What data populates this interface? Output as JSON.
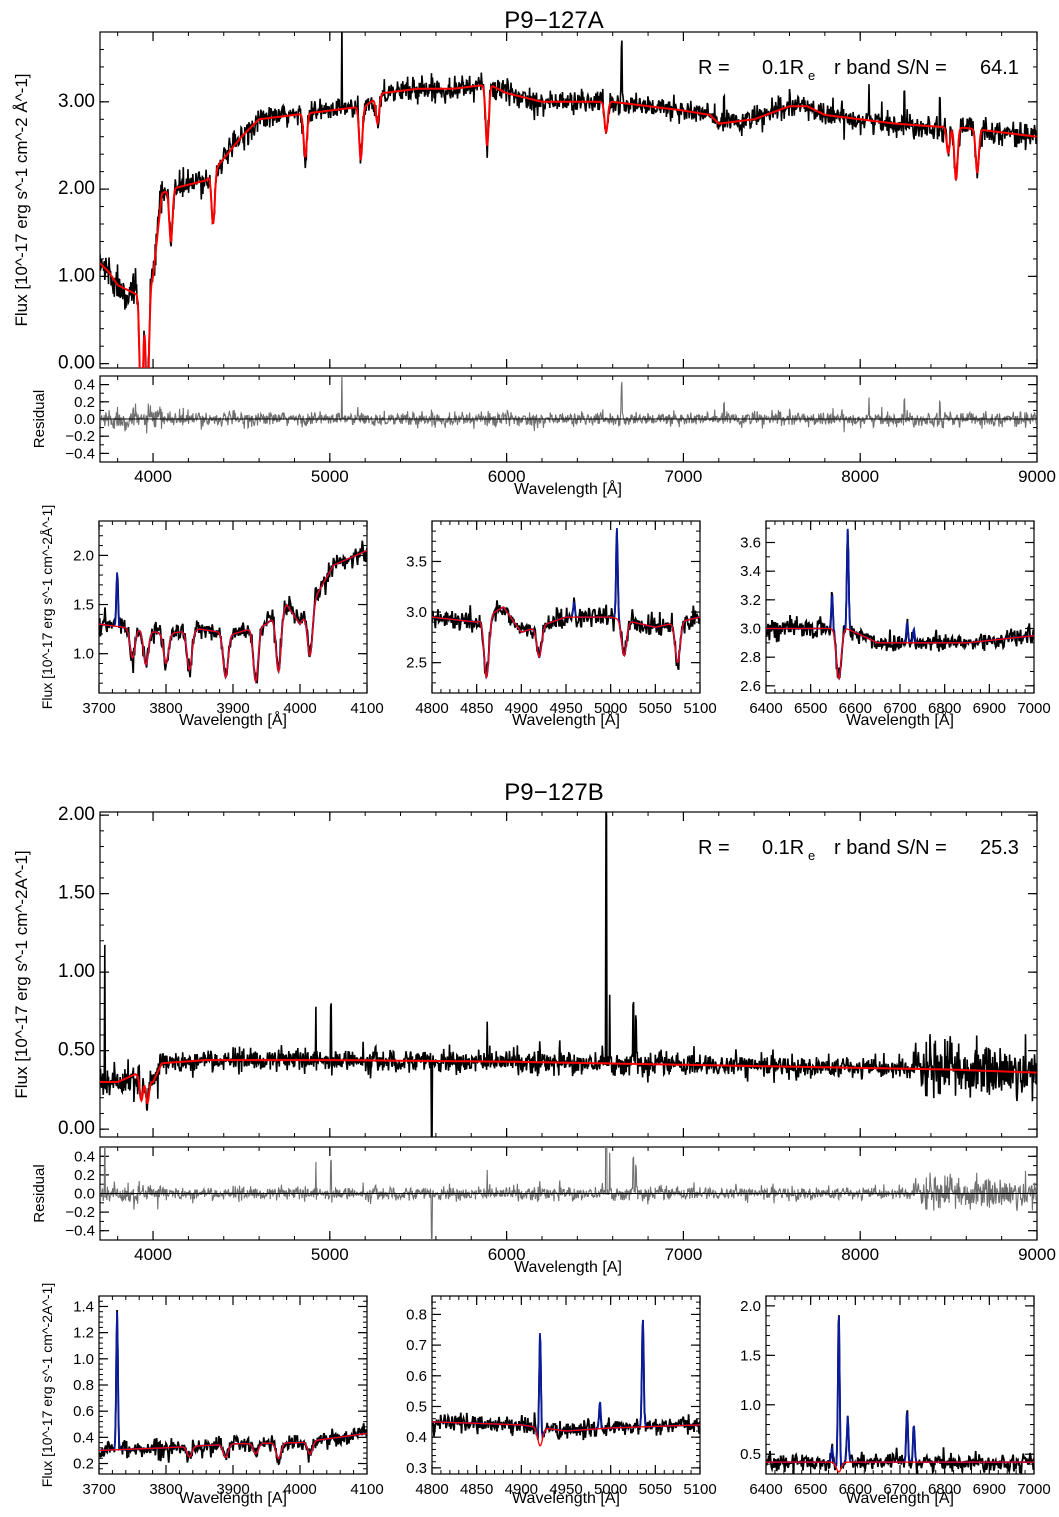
{
  "colors": {
    "data": "#000000",
    "model": "#ff0000",
    "emission": "#0b1b9e",
    "residual": "#707070"
  },
  "chart_data": [
    {
      "id": "A",
      "title": "P9−127A",
      "annotation": {
        "r_label": "R =",
        "r_value": "0.1R",
        "r_sub": "e",
        "sn_label": "r band S/N =",
        "sn_value": "64.1"
      },
      "main": {
        "type": "line",
        "xlim": [
          3700,
          9000
        ],
        "ylim": [
          -0.05,
          3.8
        ],
        "ylabel": "Flux [10^-17 erg s^-1 cm^-2 Å^-1]",
        "yticks": [
          "0.00",
          "1.00",
          "2.00",
          "3.00"
        ],
        "ytick_values": [
          0,
          1,
          2,
          3
        ],
        "continuum": [
          [
            3700,
            1.15
          ],
          [
            3750,
            1.05
          ],
          [
            3800,
            0.9
          ],
          [
            3850,
            0.85
          ],
          [
            3900,
            0.8
          ],
          [
            3960,
            0.8
          ],
          [
            4000,
            1.0
          ],
          [
            4050,
            1.95
          ],
          [
            4100,
            2.0
          ],
          [
            4200,
            2.05
          ],
          [
            4300,
            2.1
          ],
          [
            4400,
            2.35
          ],
          [
            4500,
            2.6
          ],
          [
            4600,
            2.8
          ],
          [
            4800,
            2.85
          ],
          [
            5000,
            2.9
          ],
          [
            5200,
            2.95
          ],
          [
            5300,
            3.1
          ],
          [
            5500,
            3.15
          ],
          [
            5700,
            3.15
          ],
          [
            5900,
            3.2
          ],
          [
            6000,
            3.1
          ],
          [
            6200,
            3.0
          ],
          [
            6400,
            3.0
          ],
          [
            6600,
            3.0
          ],
          [
            6800,
            2.95
          ],
          [
            7000,
            2.9
          ],
          [
            7150,
            2.85
          ],
          [
            7200,
            2.75
          ],
          [
            7400,
            2.8
          ],
          [
            7600,
            2.95
          ],
          [
            7700,
            2.95
          ],
          [
            7800,
            2.85
          ],
          [
            8000,
            2.8
          ],
          [
            8200,
            2.75
          ],
          [
            8400,
            2.72
          ],
          [
            8600,
            2.7
          ],
          [
            8800,
            2.65
          ],
          [
            9000,
            2.6
          ]
        ],
        "absorptions": [
          [
            3934,
            1.5
          ],
          [
            3968,
            1.3
          ],
          [
            4101,
            0.6
          ],
          [
            4340,
            0.6
          ],
          [
            4861,
            0.5
          ],
          [
            5175,
            0.6
          ],
          [
            5270,
            0.3
          ],
          [
            5890,
            0.7
          ],
          [
            6563,
            0.35
          ],
          [
            8498,
            0.3
          ],
          [
            8542,
            0.6
          ],
          [
            8662,
            0.5
          ]
        ],
        "spikes": [
          [
            5068,
            1.0
          ],
          [
            6650,
            0.7
          ],
          [
            7230,
            0.3
          ],
          [
            8050,
            0.4
          ],
          [
            8250,
            0.35
          ],
          [
            8450,
            0.3
          ]
        ]
      },
      "residual": {
        "ylim": [
          -0.5,
          0.5
        ],
        "ylabel": "Residual",
        "yticks": [
          "0.4",
          "0.2",
          "0.0",
          "−0.2",
          "−0.4"
        ],
        "ytick_values": [
          0.4,
          0.2,
          0,
          -0.2,
          -0.4
        ],
        "noise": 0.03
      },
      "xaxis": {
        "xticks": [
          "4000",
          "5000",
          "6000",
          "7000",
          "8000",
          "9000"
        ],
        "xtick_values": [
          4000,
          5000,
          6000,
          7000,
          8000,
          9000
        ],
        "xlabel": "Wavelength [Å]"
      },
      "zooms": [
        {
          "xlim": [
            3700,
            4100
          ],
          "ylim": [
            0.6,
            2.35
          ],
          "xticks": [
            "3700",
            "3800",
            "3900",
            "4000",
            "4100"
          ],
          "xtick_values": [
            3700,
            3800,
            3900,
            4000,
            4100
          ],
          "yticks": [
            "1.0",
            "1.5",
            "2.0"
          ],
          "ytick_values": [
            1.0,
            1.5,
            2.0
          ],
          "xlabel": "Wavelength [Å]",
          "ylabel": "Flux [10^-17 erg s^-1 cm^-2Å^-1]",
          "continuum": [
            [
              3700,
              1.3
            ],
            [
              3760,
              1.25
            ],
            [
              3800,
              1.2
            ],
            [
              3850,
              1.25
            ],
            [
              3900,
              1.2
            ],
            [
              3950,
              1.3
            ],
            [
              3980,
              1.5
            ],
            [
              4000,
              1.3
            ],
            [
              4050,
              1.9
            ],
            [
              4100,
              2.05
            ]
          ],
          "absorptions": [
            [
              3750,
              0.3
            ],
            [
              3770,
              0.35
            ],
            [
              3800,
              0.3
            ],
            [
              3835,
              0.4
            ],
            [
              3889,
              0.45
            ],
            [
              3934,
              0.55
            ],
            [
              3968,
              0.6
            ],
            [
              4015,
              0.5
            ]
          ],
          "emissions": [
            [
              3727,
              0.55
            ]
          ]
        },
        {
          "xlim": [
            4800,
            5100
          ],
          "ylim": [
            2.2,
            3.9
          ],
          "xticks": [
            "4800",
            "4850",
            "4900",
            "4950",
            "5000",
            "5050",
            "5100"
          ],
          "xtick_values": [
            4800,
            4850,
            4900,
            4950,
            5000,
            5050,
            5100
          ],
          "yticks": [
            "2.5",
            "3.0",
            "3.5"
          ],
          "ytick_values": [
            2.5,
            3.0,
            3.5
          ],
          "xlabel": "Wavelength [Å]",
          "ylabel": "",
          "continuum": [
            [
              4800,
              2.95
            ],
            [
              4850,
              2.9
            ],
            [
              4880,
              3.05
            ],
            [
              4900,
              2.8
            ],
            [
              4950,
              2.95
            ],
            [
              5000,
              2.95
            ],
            [
              5050,
              2.85
            ],
            [
              5100,
              2.95
            ]
          ],
          "absorptions": [
            [
              4861,
              0.6
            ],
            [
              4920,
              0.3
            ],
            [
              5015,
              0.35
            ],
            [
              5075,
              0.4
            ]
          ],
          "emissions": [
            [
              5007,
              0.9
            ],
            [
              4959,
              0.15
            ]
          ]
        },
        {
          "xlim": [
            6400,
            7000
          ],
          "ylim": [
            2.55,
            3.75
          ],
          "xticks": [
            "6400",
            "6500",
            "6600",
            "6700",
            "6800",
            "6900",
            "7000"
          ],
          "xtick_values": [
            6400,
            6500,
            6600,
            6700,
            6800,
            6900,
            7000
          ],
          "yticks": [
            "2.6",
            "2.8",
            "3.0",
            "3.2",
            "3.4",
            "3.6"
          ],
          "ytick_values": [
            2.6,
            2.8,
            3.0,
            3.2,
            3.4,
            3.6
          ],
          "xlabel": "Wavelength [Å]",
          "ylabel": "",
          "continuum": [
            [
              6400,
              3.0
            ],
            [
              6500,
              3.0
            ],
            [
              6580,
              3.0
            ],
            [
              6650,
              2.9
            ],
            [
              6750,
              2.9
            ],
            [
              6850,
              2.9
            ],
            [
              7000,
              2.95
            ]
          ],
          "absorptions": [
            [
              6563,
              0.35
            ]
          ],
          "emissions": [
            [
              6583,
              0.7
            ],
            [
              6548,
              0.25
            ],
            [
              6716,
              0.15
            ],
            [
              6731,
              0.1
            ]
          ]
        }
      ]
    },
    {
      "id": "B",
      "title": "P9−127B",
      "annotation": {
        "r_label": "R =",
        "r_value": "0.1R",
        "r_sub": "e",
        "sn_label": "r band S/N =",
        "sn_value": "25.3"
      },
      "main": {
        "type": "line",
        "xlim": [
          3700,
          9000
        ],
        "ylim": [
          -0.05,
          2.02
        ],
        "ylabel": "Flux [10^-17 erg s^-1 cm^-2A^-1]",
        "yticks": [
          "0.00",
          "0.50",
          "1.00",
          "1.50",
          "2.00"
        ],
        "ytick_values": [
          0,
          0.5,
          1.0,
          1.5,
          2.0
        ],
        "continuum": [
          [
            3700,
            0.3
          ],
          [
            3800,
            0.3
          ],
          [
            3900,
            0.35
          ],
          [
            4000,
            0.3
          ],
          [
            4050,
            0.42
          ],
          [
            4300,
            0.44
          ],
          [
            5000,
            0.44
          ],
          [
            6000,
            0.43
          ],
          [
            7000,
            0.41
          ],
          [
            7500,
            0.4
          ],
          [
            8000,
            0.39
          ],
          [
            8500,
            0.38
          ],
          [
            9000,
            0.36
          ]
        ],
        "absorptions": [
          [
            3934,
            0.15
          ],
          [
            3968,
            0.15
          ]
        ],
        "spikes": [
          [
            3727,
            0.9
          ],
          [
            4921,
            0.35
          ],
          [
            5007,
            0.35
          ],
          [
            5577,
            0.9
          ],
          [
            5890,
            0.25
          ],
          [
            6300,
            0.1
          ],
          [
            6563,
            1.6
          ],
          [
            6583,
            0.45
          ],
          [
            6716,
            0.35
          ],
          [
            6731,
            0.3
          ],
          [
            7060,
            0.1
          ]
        ]
      },
      "residual": {
        "ylim": [
          -0.5,
          0.5
        ],
        "ylabel": "Residual",
        "yticks": [
          "0.4",
          "0.2",
          "0.0",
          "−0.2",
          "−0.4"
        ],
        "ytick_values": [
          0.4,
          0.2,
          0,
          -0.2,
          -0.4
        ],
        "noise": 0.09
      },
      "xaxis": {
        "xticks": [
          "4000",
          "5000",
          "6000",
          "7000",
          "8000",
          "9000"
        ],
        "xtick_values": [
          4000,
          5000,
          6000,
          7000,
          8000,
          9000
        ],
        "xlabel": "Wavelength [A]"
      },
      "zooms": [
        {
          "xlim": [
            3700,
            4100
          ],
          "ylim": [
            0.12,
            1.48
          ],
          "xticks": [
            "3700",
            "3800",
            "3900",
            "4000",
            "4100"
          ],
          "xtick_values": [
            3700,
            3800,
            3900,
            4000,
            4100
          ],
          "yticks": [
            "0.2",
            "0.4",
            "0.6",
            "0.8",
            "1.0",
            "1.2",
            "1.4"
          ],
          "ytick_values": [
            0.2,
            0.4,
            0.6,
            0.8,
            1.0,
            1.2,
            1.4
          ],
          "xlabel": "Wavelength [A]",
          "ylabel": "Flux [10^-17 erg s^-1 cm^-2A^-1]",
          "continuum": [
            [
              3700,
              0.3
            ],
            [
              3800,
              0.32
            ],
            [
              3900,
              0.35
            ],
            [
              4000,
              0.36
            ],
            [
              4100,
              0.43
            ]
          ],
          "absorptions": [
            [
              3835,
              0.08
            ],
            [
              3889,
              0.1
            ],
            [
              3934,
              0.08
            ],
            [
              3968,
              0.12
            ],
            [
              4015,
              0.1
            ]
          ],
          "emissions": [
            [
              3727,
              1.05
            ]
          ]
        },
        {
          "xlim": [
            4800,
            5100
          ],
          "ylim": [
            0.28,
            0.86
          ],
          "xticks": [
            "4800",
            "4850",
            "4900",
            "4950",
            "5000",
            "5050",
            "5100"
          ],
          "xtick_values": [
            4800,
            4850,
            4900,
            4950,
            5000,
            5050,
            5100
          ],
          "yticks": [
            "0.3",
            "0.4",
            "0.5",
            "0.6",
            "0.7",
            "0.8"
          ],
          "ytick_values": [
            0.3,
            0.4,
            0.5,
            0.6,
            0.7,
            0.8
          ],
          "xlabel": "Wavelength [A]",
          "ylabel": "",
          "continuum": [
            [
              4800,
              0.45
            ],
            [
              4900,
              0.44
            ],
            [
              4950,
              0.42
            ],
            [
              5000,
              0.43
            ],
            [
              5100,
              0.44
            ]
          ],
          "absorptions": [
            [
              4921,
              0.06
            ]
          ],
          "emissions": [
            [
              4921,
              0.38
            ],
            [
              4988,
              0.09
            ],
            [
              5036,
              0.36
            ]
          ]
        },
        {
          "xlim": [
            6400,
            7000
          ],
          "ylim": [
            0.3,
            2.1
          ],
          "xticks": [
            "6400",
            "6500",
            "6600",
            "6700",
            "6800",
            "6900",
            "7000"
          ],
          "xtick_values": [
            6400,
            6500,
            6600,
            6700,
            6800,
            6900,
            7000
          ],
          "yticks": [
            "0.5",
            "1.0",
            "1.5",
            "2.0"
          ],
          "ytick_values": [
            0.5,
            1.0,
            1.5,
            2.0
          ],
          "xlabel": "Wavelength [A]",
          "ylabel": "",
          "continuum": [
            [
              6400,
              0.42
            ],
            [
              7000,
              0.42
            ]
          ],
          "absorptions": [
            [
              6563,
              0.1
            ]
          ],
          "emissions": [
            [
              6563,
              1.63
            ],
            [
              6583,
              0.47
            ],
            [
              6548,
              0.15
            ],
            [
              6716,
              0.52
            ],
            [
              6731,
              0.38
            ]
          ]
        }
      ]
    }
  ]
}
